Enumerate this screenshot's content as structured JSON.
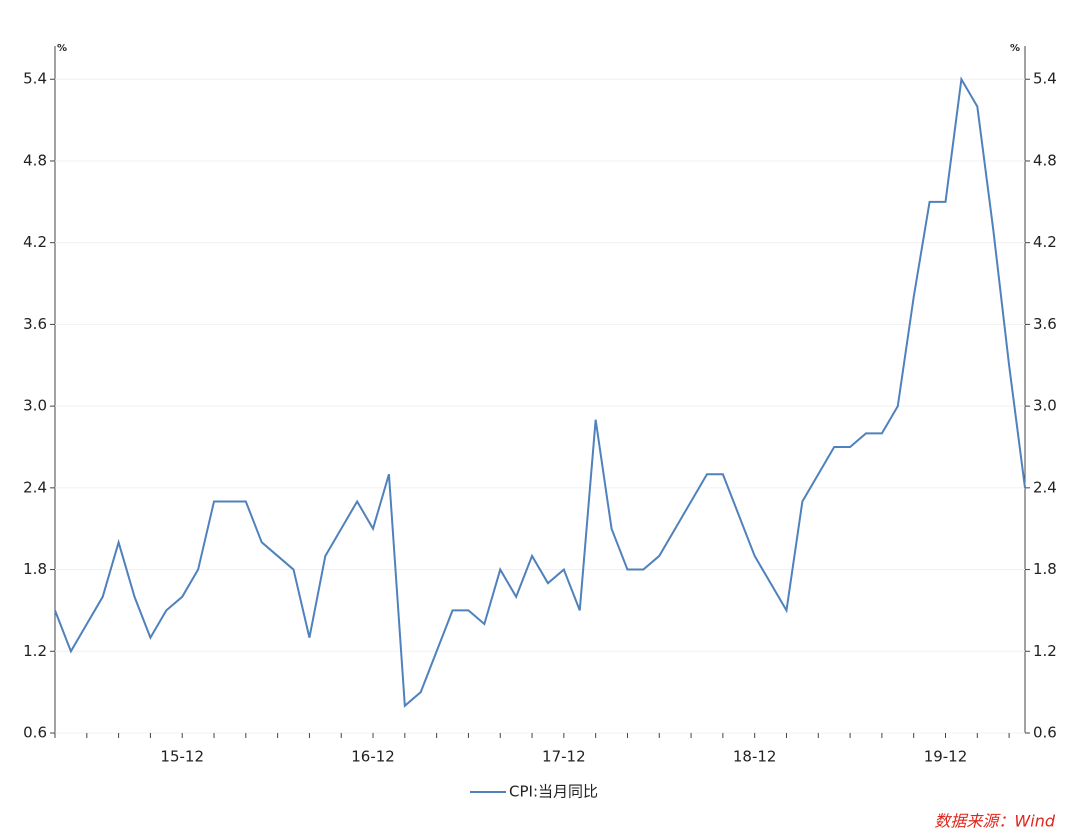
{
  "chart_data": {
    "type": "line",
    "y_unit": "%",
    "y2_unit": "%",
    "categories": [
      null,
      null,
      null,
      null,
      null,
      null,
      null,
      null,
      "15-12",
      null,
      null,
      null,
      null,
      null,
      null,
      null,
      null,
      null,
      null,
      null,
      "16-12",
      null,
      null,
      null,
      null,
      null,
      null,
      null,
      null,
      null,
      null,
      null,
      "17-12",
      null,
      null,
      null,
      null,
      null,
      null,
      null,
      null,
      null,
      null,
      null,
      "18-12",
      null,
      null,
      null,
      null,
      null,
      null,
      null,
      null,
      null,
      null,
      null,
      "19-12",
      null,
      null,
      null,
      null,
      null
    ],
    "series": [
      {
        "name": "CPI:当月同比",
        "color": "#4f81bd",
        "values": [
          1.5,
          1.2,
          1.4,
          1.6,
          2.0,
          1.6,
          1.3,
          1.5,
          1.6,
          1.8,
          2.3,
          2.3,
          2.3,
          2.0,
          1.9,
          1.8,
          1.3,
          1.9,
          2.1,
          2.3,
          2.1,
          2.5,
          0.8,
          0.9,
          1.2,
          1.5,
          1.5,
          1.4,
          1.8,
          1.6,
          1.9,
          1.7,
          1.8,
          1.5,
          2.9,
          2.1,
          1.8,
          1.8,
          1.9,
          2.1,
          2.3,
          2.5,
          2.5,
          2.2,
          1.9,
          1.7,
          1.5,
          2.3,
          2.5,
          2.7,
          2.7,
          2.8,
          2.8,
          3.0,
          3.8,
          4.5,
          4.5,
          5.4,
          5.2,
          4.3,
          3.3,
          2.4
        ]
      }
    ],
    "ylim": [
      0.6,
      5.6
    ],
    "yticks": [
      0.6,
      1.2,
      1.8,
      2.4,
      {
        "value": 3,
        "label": "3.0"
      },
      3.6,
      4.2,
      4.8,
      5.4
    ],
    "y2lim": [
      0.6,
      5.6
    ],
    "y2ticks": [
      0.6,
      1.2,
      1.8,
      2.4,
      {
        "value": 3,
        "label": "3.0"
      },
      3.6,
      4.2,
      4.8,
      5.4
    ],
    "grid": true,
    "source": "数据来源：Wind"
  }
}
